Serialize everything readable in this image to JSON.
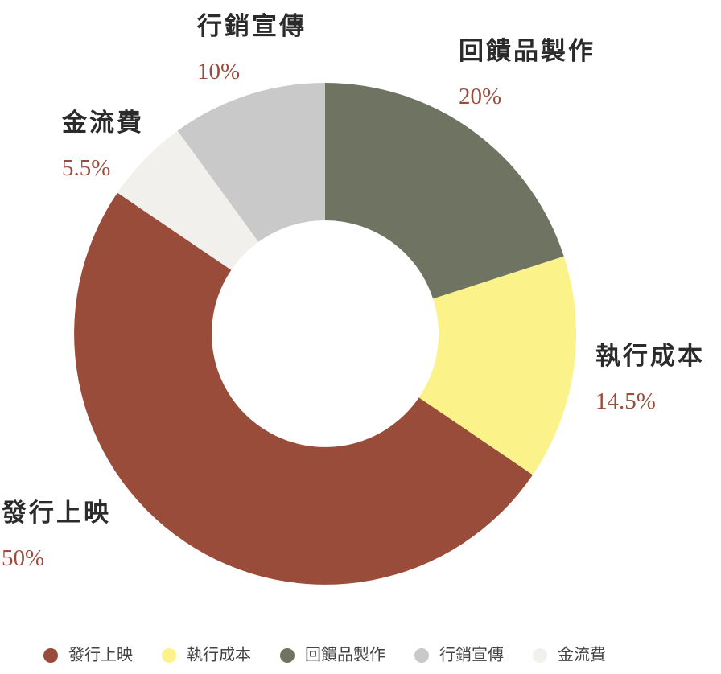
{
  "chart_data": {
    "type": "donut",
    "categories": [
      "發行上映",
      "執行成本",
      "回饋品製作",
      "行銷宣傳",
      "金流費"
    ],
    "values": [
      50,
      14.5,
      20,
      10,
      5.5
    ],
    "value_labels": [
      "50%",
      "14.5%",
      "20%",
      "10%",
      "5.5%"
    ],
    "colors": [
      "#9a4c3b",
      "#fbf28a",
      "#6e7461",
      "#c9c9c9",
      "#f1f0ec"
    ],
    "label_color": "#9a4c3b",
    "legend": "bottom"
  }
}
